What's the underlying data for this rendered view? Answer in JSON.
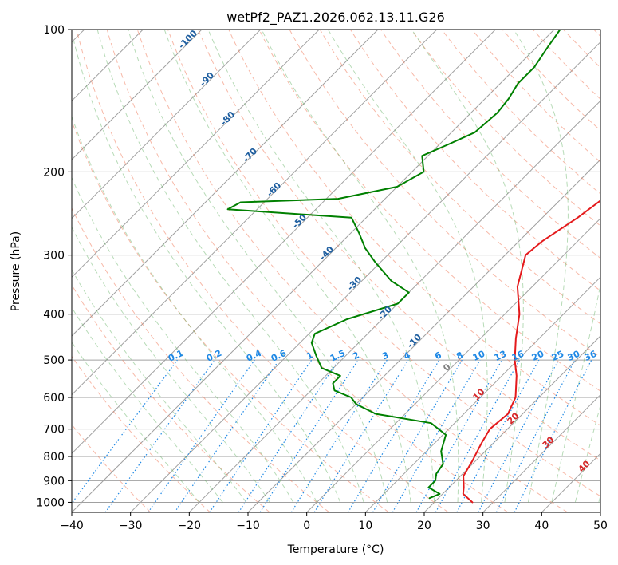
{
  "chart_data": {
    "type": "line",
    "title": "wetPf2_PAZ1.2026.062.13.11.G26",
    "xlabel": "Temperature (°C)",
    "ylabel": "Pressure (hPa)",
    "xlim": [
      -40,
      50
    ],
    "ylim": [
      1050,
      100
    ],
    "y_scale": "log",
    "grid": true,
    "x_ticks": [
      -40,
      -30,
      -20,
      -10,
      0,
      10,
      20,
      30,
      40,
      50
    ],
    "x_tick_labels": [
      "−40",
      "−30",
      "−20",
      "−10",
      "0",
      "10",
      "20",
      "30",
      "40",
      "50"
    ],
    "y_ticks": [
      100,
      200,
      300,
      400,
      500,
      600,
      700,
      800,
      900,
      1000
    ],
    "y_tick_labels": [
      "100",
      "200",
      "300",
      "400",
      "500",
      "600",
      "700",
      "800",
      "900",
      "1000"
    ],
    "skew_isotherms": true,
    "series": [
      {
        "kind": "temperature",
        "color": "#e41a1c",
        "points": [
          [
            26.5,
            1000
          ],
          [
            23.5,
            960
          ],
          [
            22.5,
            930
          ],
          [
            20.5,
            880
          ],
          [
            19.5,
            820
          ],
          [
            18.0,
            750
          ],
          [
            17.0,
            700
          ],
          [
            17.5,
            650
          ],
          [
            16.0,
            600
          ],
          [
            12.5,
            540
          ],
          [
            9.5,
            500
          ],
          [
            6.0,
            450
          ],
          [
            2.5,
            400
          ],
          [
            -2.5,
            350
          ],
          [
            -6.5,
            300
          ],
          [
            -6.0,
            280
          ],
          [
            -4.0,
            250
          ],
          [
            -2.5,
            220
          ],
          [
            -3.0,
            190
          ],
          [
            -5.5,
            160
          ],
          [
            -8.0,
            140
          ],
          [
            -9.5,
            125
          ],
          [
            -11.5,
            110
          ],
          [
            -14.0,
            100
          ]
        ]
      },
      {
        "kind": "dewpoint",
        "color": "#008000",
        "points": [
          [
            18.5,
            980
          ],
          [
            19.5,
            960
          ],
          [
            16.5,
            930
          ],
          [
            16.5,
            900
          ],
          [
            15.5,
            870
          ],
          [
            15.0,
            830
          ],
          [
            12.5,
            780
          ],
          [
            10.5,
            720
          ],
          [
            6.0,
            680
          ],
          [
            -5.0,
            650
          ],
          [
            -10.0,
            620
          ],
          [
            -12.0,
            600
          ],
          [
            -16.0,
            580
          ],
          [
            -17.5,
            560
          ],
          [
            -17.5,
            540
          ],
          [
            -22.0,
            520
          ],
          [
            -25.0,
            490
          ],
          [
            -28.0,
            460
          ],
          [
            -29.0,
            440
          ],
          [
            -26.0,
            410
          ],
          [
            -20.0,
            380
          ],
          [
            -20.0,
            360
          ],
          [
            -25.0,
            340
          ],
          [
            -31.0,
            310
          ],
          [
            -35.0,
            290
          ],
          [
            -38.5,
            270
          ],
          [
            -42.5,
            250
          ],
          [
            -65.0,
            240
          ],
          [
            -64.0,
            232
          ],
          [
            -48.0,
            228
          ],
          [
            -40.0,
            215
          ],
          [
            -38.0,
            200
          ],
          [
            -41.0,
            185
          ],
          [
            -38.5,
            175
          ],
          [
            -36.0,
            165
          ],
          [
            -35.5,
            150
          ],
          [
            -36.0,
            140
          ],
          [
            -37.0,
            130
          ],
          [
            -37.0,
            120
          ],
          [
            -38.0,
            110
          ],
          [
            -39.0,
            100
          ]
        ]
      }
    ],
    "isotherm_labels": [
      "-100",
      "-90",
      "-80",
      "-70",
      "-60",
      "-50",
      "-40",
      "-30",
      "-20",
      "-10"
    ],
    "moist_adiabat_labels": [
      "0",
      "10",
      "20",
      "30",
      "40"
    ],
    "mixing_ratio_labels": [
      "0.1",
      "0.2",
      "0.4",
      "0.6",
      "1",
      "1.5",
      "2",
      "3",
      "4",
      "6",
      "8",
      "10",
      "13",
      "16",
      "20",
      "25",
      "30",
      "36"
    ],
    "colors": {
      "temperature": "#e41a1c",
      "dewpoint": "#008000",
      "grid": "#a0a0a0",
      "dry_adiabat": "#f08060",
      "moist_adiabat": "#60b060",
      "mixing_ratio": "#1e88e5",
      "isotherm_label": "#1f5fa0",
      "moist_label": "#d62728",
      "zero_label": "#808080",
      "tan_curve": "#c8a878"
    }
  }
}
